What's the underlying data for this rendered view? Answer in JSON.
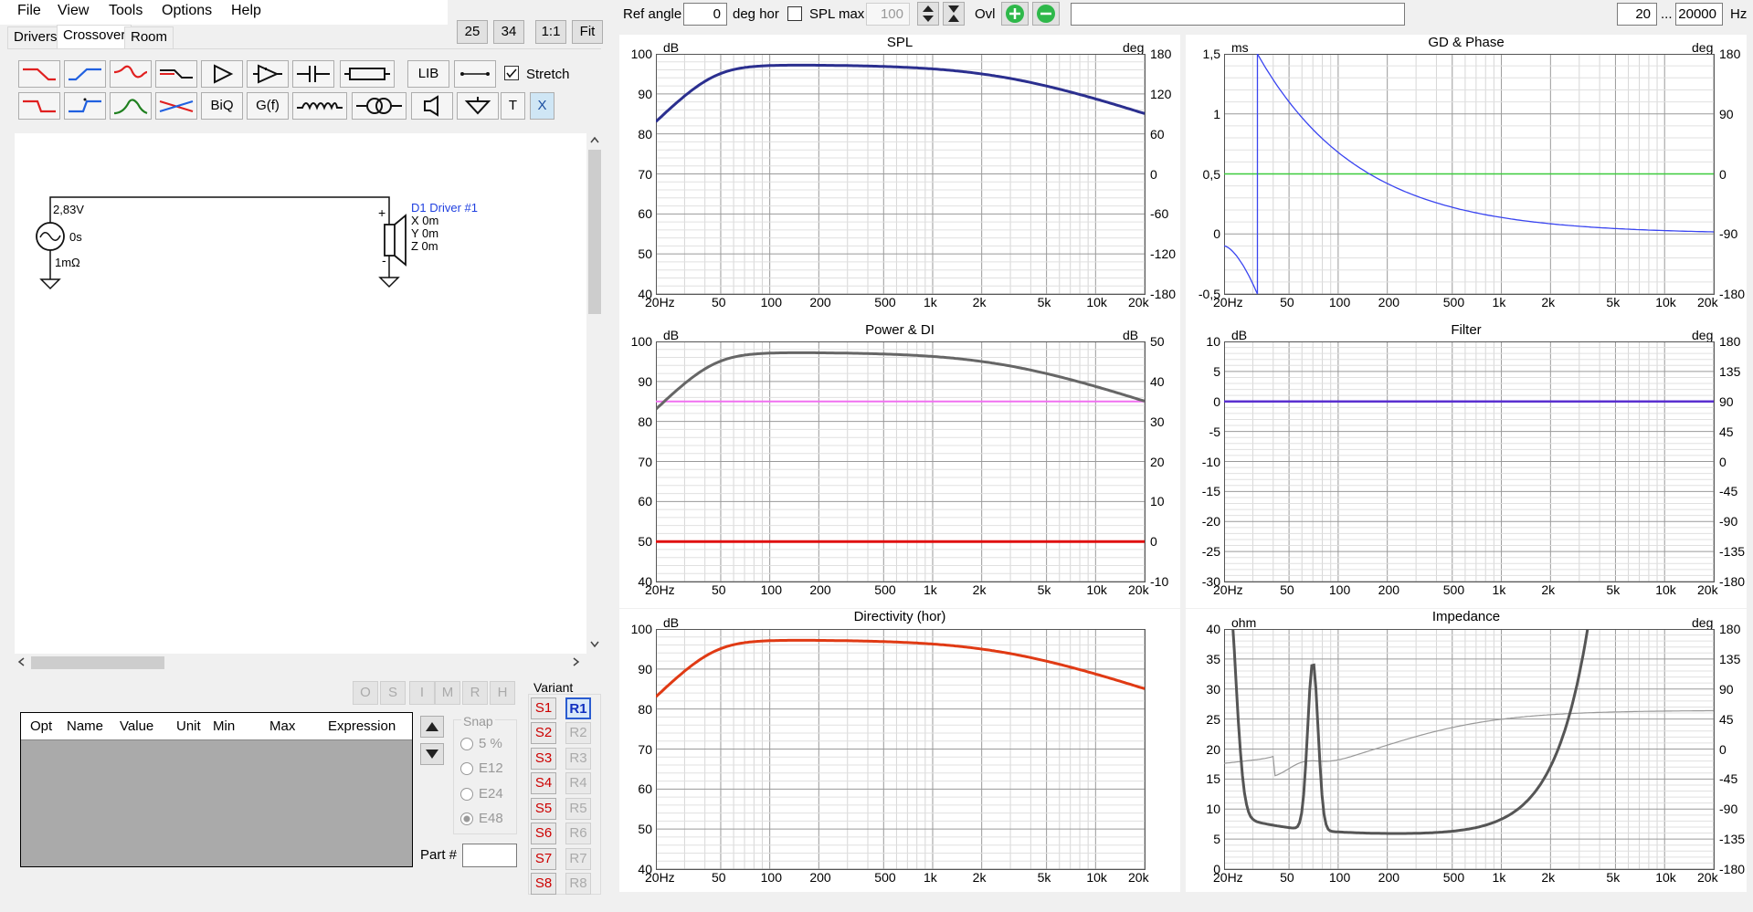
{
  "menu": [
    "File",
    "View",
    "Tools",
    "Options",
    "Help"
  ],
  "size_buttons": [
    "25",
    "34",
    "1:1",
    "Fit"
  ],
  "tabs": [
    "Drivers",
    "Crossover",
    "Room"
  ],
  "toolbar": {
    "lib": "LIB",
    "stretch": "Stretch",
    "biq": "BiQ",
    "gf": "G(f)",
    "t": "T",
    "x": "X"
  },
  "schematic": {
    "voltage": "2,83V",
    "delay": "0s",
    "resistance": "1mΩ",
    "driver_name": "D1 Driver #1",
    "x": "X 0m",
    "y": "Y 0m",
    "z": "Z 0m",
    "plus": "+",
    "minus": "-"
  },
  "opt_buttons": [
    "O",
    "S",
    "I",
    "M",
    "R",
    "H"
  ],
  "table_headers": [
    "Opt",
    "Name",
    "Value",
    "Unit",
    "Min",
    "Max",
    "Expression"
  ],
  "snap": {
    "label": "Snap",
    "options": [
      "5 %",
      "E12",
      "E24",
      "E48"
    ]
  },
  "part_label": "Part #",
  "variant": {
    "label": "Variant",
    "s": [
      "S1",
      "S2",
      "S3",
      "S4",
      "S5",
      "S6",
      "S7",
      "S8"
    ],
    "r": [
      "R1",
      "R2",
      "R3",
      "R4",
      "R5",
      "R6",
      "R7",
      "R8"
    ]
  },
  "topbar": {
    "ref_angle_label": "Ref angle",
    "ref_angle": "0",
    "deg_hor": "deg hor",
    "spl_max_label": "SPL max",
    "spl_max": "100",
    "ovl": "Ovl",
    "f_min": "20",
    "ellipsis": "...",
    "f_max": "20000",
    "hz": "Hz"
  },
  "x_ticks": [
    "20Hz",
    "50",
    "100",
    "200",
    "500",
    "1k",
    "2k",
    "5k",
    "10k",
    "20k"
  ],
  "panels": [
    {
      "id": "spl",
      "title": "SPL",
      "left_unit": "dB",
      "right_unit": "deg",
      "left_ticks": [
        "100",
        "90",
        "80",
        "70",
        "60",
        "50",
        "40"
      ],
      "right_ticks": [
        "180",
        "120",
        "60",
        "0",
        "-60",
        "-120",
        "-180"
      ]
    },
    {
      "id": "gd",
      "title": "GD & Phase",
      "left_unit": "ms",
      "right_unit": "deg",
      "left_ticks": [
        "1,5",
        "1",
        "0,5",
        "0",
        "-0,5"
      ],
      "right_ticks": [
        "180",
        "90",
        "0",
        "-90",
        "-180"
      ]
    },
    {
      "id": "power",
      "title": "Power & DI",
      "left_unit": "dB",
      "right_unit": "dB",
      "left_ticks": [
        "100",
        "90",
        "80",
        "70",
        "60",
        "50",
        "40"
      ],
      "right_ticks": [
        "50",
        "40",
        "30",
        "20",
        "10",
        "0",
        "-10"
      ]
    },
    {
      "id": "filter",
      "title": "Filter",
      "left_unit": "dB",
      "right_unit": "deg",
      "left_ticks": [
        "10",
        "5",
        "0",
        "-5",
        "-10",
        "-15",
        "-20",
        "-25",
        "-30"
      ],
      "right_ticks": [
        "180",
        "135",
        "90",
        "45",
        "0",
        "-45",
        "-90",
        "-135",
        "-180"
      ]
    },
    {
      "id": "dir",
      "title": "Directivity (hor)",
      "left_unit": "dB",
      "right_unit": "",
      "left_ticks": [
        "100",
        "90",
        "80",
        "70",
        "60",
        "50",
        "40"
      ],
      "right_ticks": []
    },
    {
      "id": "imp",
      "title": "Impedance",
      "left_unit": "ohm",
      "right_unit": "deg",
      "left_ticks": [
        "40",
        "35",
        "30",
        "25",
        "20",
        "15",
        "10",
        "5",
        "0"
      ],
      "right_ticks": [
        "180",
        "135",
        "90",
        "45",
        "0",
        "-45",
        "-90",
        "-135",
        "-180"
      ]
    }
  ],
  "colors": {
    "spl": "#2b2f8f",
    "gd": "#3a45f0",
    "phase_line": "#3ccc3c",
    "power": "#666666",
    "di_pink": "#f070f0",
    "di_red": "#e01010",
    "filter": "#5a2fd0",
    "dir": "#e03a14",
    "imp": "#555555",
    "imp_phase": "#999999"
  }
}
